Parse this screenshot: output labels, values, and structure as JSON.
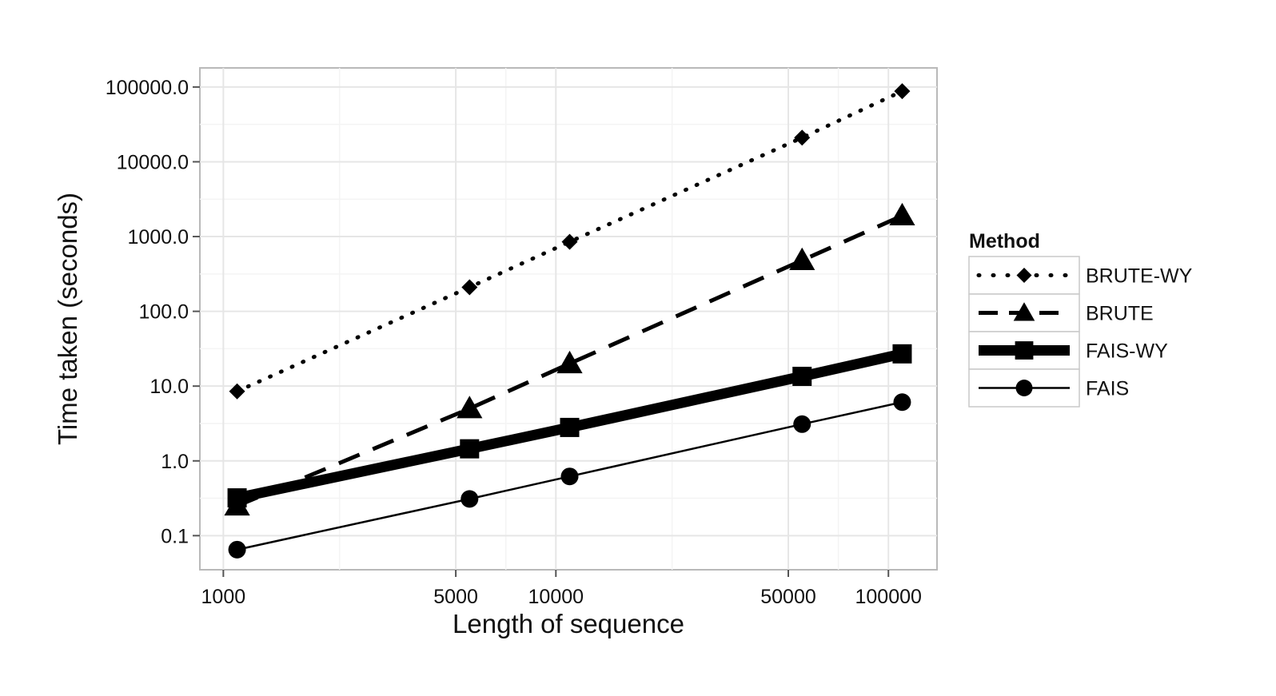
{
  "chart_data": {
    "type": "line",
    "title": "",
    "xlabel": "Length of sequence",
    "ylabel": "Time taken (seconds)",
    "x_scale": "log",
    "y_scale": "log",
    "xlim": [
      850,
      140000
    ],
    "ylim": [
      0.035,
      180000
    ],
    "x_ticks": [
      1000,
      5000,
      10000,
      50000,
      100000
    ],
    "x_tick_labels": [
      "1000",
      "5000",
      "10000",
      "50000",
      "100000"
    ],
    "y_ticks": [
      0.1,
      1,
      10,
      100,
      1000,
      10000,
      100000
    ],
    "y_tick_labels": [
      "0.1",
      "1.0",
      "10.0",
      "100.0",
      "1000.0",
      "10000.0",
      "100000.0"
    ],
    "grid": true,
    "legend_title": "Method",
    "legend_position": "right",
    "x": [
      1100,
      5500,
      11000,
      55000,
      110000
    ],
    "series": [
      {
        "name": "BRUTE-WY",
        "values": [
          8.5,
          210,
          850,
          21000,
          88000
        ],
        "line": "dotted",
        "marker": "diamond",
        "color": "#000000"
      },
      {
        "name": "BRUTE",
        "values": [
          0.25,
          5,
          20,
          480,
          1900
        ],
        "line": "dashed",
        "marker": "triangle",
        "color": "#000000"
      },
      {
        "name": "FAIS-WY",
        "values": [
          0.32,
          1.45,
          2.8,
          13.5,
          27
        ],
        "line": "thick",
        "marker": "square",
        "color": "#000000"
      },
      {
        "name": "FAIS",
        "values": [
          0.065,
          0.31,
          0.62,
          3.1,
          6.1
        ],
        "line": "solid",
        "marker": "circle",
        "color": "#000000"
      }
    ]
  }
}
